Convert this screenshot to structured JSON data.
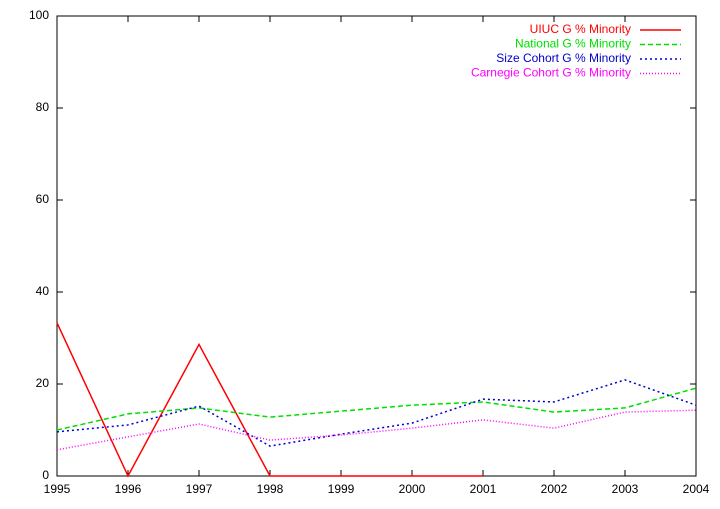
{
  "chart_data": {
    "type": "line",
    "x": [
      1995,
      1996,
      1997,
      1998,
      1999,
      2000,
      2001,
      2002,
      2003,
      2004
    ],
    "series": [
      {
        "name": "UIUC G % Minority",
        "color": "#ff0000",
        "dash": "none",
        "values": [
          33.3,
          0,
          28.6,
          0,
          0,
          0,
          0,
          null,
          null,
          null
        ]
      },
      {
        "name": "National G % Minority",
        "color": "#00e000",
        "dash": "5,3",
        "values": [
          10,
          13.5,
          14.8,
          12.8,
          14.1,
          15.4,
          16.1,
          13.9,
          14.8,
          19.1
        ]
      },
      {
        "name": "Size Cohort G % Minority",
        "color": "#0000cc",
        "dash": "2,3",
        "values": [
          9.6,
          11.1,
          15.2,
          6.5,
          9.1,
          11.5,
          16.7,
          16.1,
          20.9,
          15.4
        ]
      },
      {
        "name": "Carnegie Cohort G % Minority",
        "color": "#ff00ff",
        "dash": "1,2",
        "values": [
          5.7,
          8.5,
          11.3,
          7.8,
          8.9,
          10.4,
          12.2,
          10.4,
          13.9,
          14.3
        ]
      }
    ],
    "xlim": [
      1995,
      2004
    ],
    "xticks": [
      1995,
      1996,
      1997,
      1998,
      1999,
      2000,
      2001,
      2002,
      2003,
      2004
    ],
    "ylim": [
      0,
      100
    ],
    "yticks": [
      0,
      20,
      40,
      60,
      80,
      100
    ],
    "grid": false,
    "legend": "top-right"
  }
}
